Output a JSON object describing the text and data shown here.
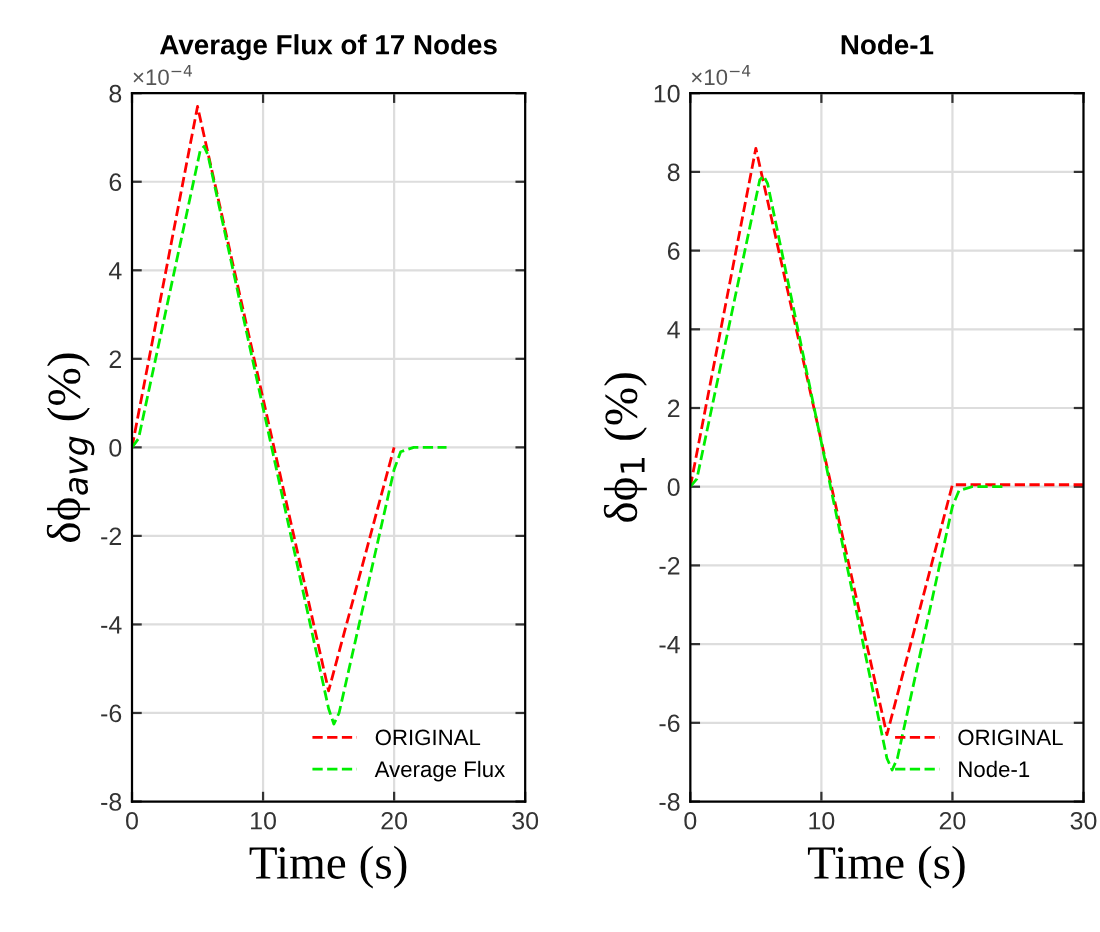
{
  "chart_data": [
    {
      "type": "line",
      "title": "Average Flux of 17 Nodes",
      "xlabel": "Time (s)",
      "ylabel": "δϕ$_{avg}$ (%)",
      "annotations": [
        "×10$^{−4}$"
      ],
      "xlim": [
        0,
        30
      ],
      "xticks": [
        0,
        10,
        20,
        30
      ],
      "ylim": [
        -8,
        8
      ],
      "yticks": [
        -8,
        -6,
        -4,
        -2,
        0,
        2,
        4,
        6,
        8
      ],
      "grid": true,
      "legend": "lower right",
      "line_style": "dashed",
      "series": [
        {
          "name": "ORIGINAL",
          "color": "#ff0000",
          "x": [
            0,
            5,
            15,
            20
          ],
          "values": [
            0,
            7.7,
            -5.5,
            0
          ]
        },
        {
          "name": "Average Flux",
          "color": "#00ee00",
          "x": [
            0,
            0.5,
            5.2,
            5.5,
            5.8,
            15,
            15.4,
            15.8,
            20,
            20.5,
            21.5,
            24
          ],
          "values": [
            0,
            0.2,
            6.7,
            6.8,
            6.6,
            -5.9,
            -6.25,
            -6,
            -0.5,
            -0.1,
            0,
            0
          ]
        }
      ]
    },
    {
      "type": "line",
      "title": "Node-1",
      "xlabel": "Time (s)",
      "ylabel": "δϕ$_{1}$ (%)",
      "annotations": [
        "×10$^{−4}$"
      ],
      "xlim": [
        0,
        30
      ],
      "xticks": [
        0,
        10,
        20,
        30
      ],
      "ylim": [
        -8,
        10
      ],
      "yticks": [
        -8,
        -6,
        -4,
        -2,
        0,
        2,
        4,
        6,
        8,
        10
      ],
      "grid": true,
      "legend": "lower right",
      "line_style": "dashed",
      "series": [
        {
          "name": "ORIGINAL",
          "color": "#ff0000",
          "x": [
            0,
            5,
            15,
            20,
            30
          ],
          "values": [
            0,
            8.6,
            -6.3,
            0.05,
            0.05
          ]
        },
        {
          "name": "Node-1",
          "color": "#00ee00",
          "x": [
            0,
            0.5,
            5.3,
            5.6,
            5.9,
            15,
            15.4,
            15.8,
            20,
            20.5,
            21.5,
            24
          ],
          "values": [
            0,
            0.2,
            7.8,
            7.9,
            7.7,
            -6.9,
            -7.2,
            -6.9,
            -0.5,
            -0.1,
            0,
            0
          ]
        }
      ]
    }
  ]
}
